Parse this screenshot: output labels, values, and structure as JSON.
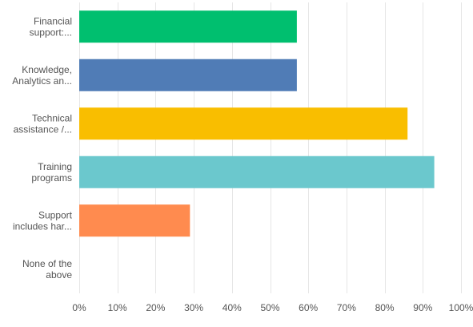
{
  "chart_data": {
    "type": "bar",
    "orientation": "horizontal",
    "title": "",
    "xlabel": "",
    "ylabel": "",
    "categories": [
      [
        "Financial",
        "support:..."
      ],
      [
        "Knowledge,",
        "Analytics an..."
      ],
      [
        "Technical",
        "assistance /..."
      ],
      [
        "Training",
        "programs"
      ],
      [
        "Support",
        "includes har..."
      ],
      [
        "None of the",
        "above"
      ]
    ],
    "values": [
      57,
      57,
      86,
      93,
      29,
      0
    ],
    "colors": [
      "#00bf6f",
      "#507cb6",
      "#f9be00",
      "#6bc8cd",
      "#ff8b4f",
      "#a6a6a6"
    ],
    "xlim": [
      0,
      100
    ],
    "x_ticks": [
      "0%",
      "10%",
      "20%",
      "30%",
      "40%",
      "50%",
      "60%",
      "70%",
      "80%",
      "90%",
      "100%"
    ],
    "grid": true,
    "legend": "none"
  }
}
